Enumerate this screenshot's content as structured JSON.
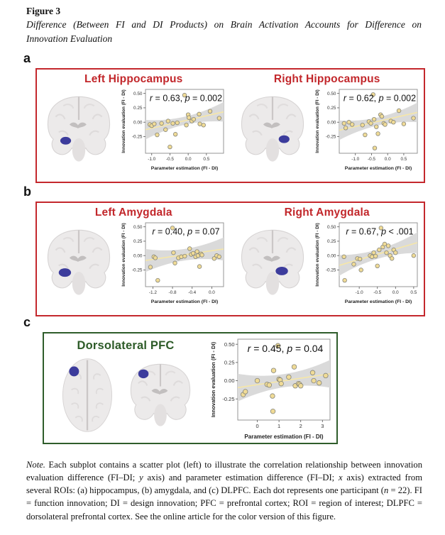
{
  "header": {
    "figure_label": "Figure 3",
    "caption_line1": "Difference (Between FI and DI Products) on Brain Activation Accounts for Difference on",
    "caption_line2": "Innovation Evaluation"
  },
  "colors": {
    "panel_red": "#C4282D",
    "panel_green": "#2F5D2B",
    "title_red": "#C2272B",
    "title_green": "#2D5B28",
    "dot_fill": "#F0DB96",
    "dot_stroke": "#85857B",
    "trend_line": "#F6E7A8",
    "band": "#DADADA",
    "roi_blue": "#3C3C9C"
  },
  "panels": [
    {
      "letter": "a",
      "subfigs": [
        {
          "title": "Left Hippocampus"
        },
        {
          "title": "Right Hippocampus"
        }
      ]
    },
    {
      "letter": "b",
      "subfigs": [
        {
          "title": "Left Amygdala"
        },
        {
          "title": "Right Amygdala"
        }
      ]
    },
    {
      "letter": "c",
      "subfigs": [
        {
          "title": "Dorsolateral PFC"
        }
      ]
    }
  ],
  "chart_data": [
    {
      "type": "scatter",
      "title": "Left Hippocampus",
      "xlabel": "Parameter estimation (FI - DI)",
      "ylabel": "Innovation evaluation (FI - DI)",
      "xlim": [
        -1.17,
        0.97
      ],
      "ylim": [
        -0.54,
        0.57
      ],
      "xticks": [
        [
          -1.0,
          "-1.0"
        ],
        [
          -0.5,
          "-0.5"
        ],
        [
          0.0,
          "0.0"
        ],
        [
          0.5,
          "0.5"
        ]
      ],
      "yticks": [
        [
          0.5,
          "0.50"
        ],
        [
          0.25,
          "0.25"
        ],
        [
          0.0,
          "0.00"
        ],
        [
          -0.25,
          "-0.25"
        ]
      ],
      "r": "0.63",
      "p_op": "=",
      "p_value": "0.002",
      "trend": {
        "x0": -1.17,
        "y0": -0.13,
        "x1": 0.97,
        "y1": 0.18,
        "band_mid": 0.07,
        "band_end": 0.17
      },
      "points": [
        [
          -1.05,
          -0.04
        ],
        [
          -1.0,
          -0.06
        ],
        [
          -0.93,
          -0.03
        ],
        [
          -0.85,
          -0.22
        ],
        [
          -0.73,
          -0.02
        ],
        [
          -0.62,
          -0.13
        ],
        [
          -0.55,
          0.02
        ],
        [
          -0.5,
          -0.43
        ],
        [
          -0.42,
          -0.02
        ],
        [
          -0.35,
          -0.21
        ],
        [
          -0.3,
          -0.01
        ],
        [
          -0.1,
          0.47
        ],
        [
          -0.05,
          -0.05
        ],
        [
          0.0,
          0.13
        ],
        [
          0.02,
          0.08
        ],
        [
          0.1,
          0.02
        ],
        [
          0.15,
          0.05
        ],
        [
          0.3,
          0.14
        ],
        [
          0.32,
          -0.03
        ],
        [
          0.42,
          -0.05
        ],
        [
          0.6,
          0.19
        ],
        [
          0.85,
          0.07
        ]
      ]
    },
    {
      "type": "scatter",
      "title": "Right Hippocampus",
      "xlabel": "Parameter estimation (FI - DI)",
      "ylabel": "Innovation evaluation (FI - DI)",
      "xlim": [
        -1.5,
        0.92
      ],
      "ylim": [
        -0.54,
        0.57
      ],
      "xticks": [
        [
          -1.0,
          "-1.0"
        ],
        [
          -0.5,
          "-0.5"
        ],
        [
          0.0,
          "0.0"
        ],
        [
          0.5,
          "0.5"
        ]
      ],
      "yticks": [
        [
          0.5,
          "0.50"
        ],
        [
          0.25,
          "0.25"
        ],
        [
          0.0,
          "0.00"
        ],
        [
          -0.25,
          "-0.25"
        ]
      ],
      "r": "0.62",
      "p_op": "=",
      "p_value": "0.002",
      "trend": {
        "x0": -1.5,
        "y0": -0.14,
        "x1": 0.92,
        "y1": 0.17,
        "band_mid": 0.07,
        "band_end": 0.17
      },
      "points": [
        [
          -1.35,
          -0.02
        ],
        [
          -1.3,
          -0.1
        ],
        [
          -1.2,
          0.0
        ],
        [
          -1.1,
          -0.04
        ],
        [
          -0.78,
          -0.05
        ],
        [
          -0.7,
          -0.22
        ],
        [
          -0.58,
          0.01
        ],
        [
          -0.52,
          -0.02
        ],
        [
          -0.45,
          0.48
        ],
        [
          -0.42,
          0.05
        ],
        [
          -0.4,
          -0.45
        ],
        [
          -0.35,
          -0.08
        ],
        [
          -0.3,
          -0.2
        ],
        [
          -0.22,
          0.13
        ],
        [
          -0.18,
          0.1
        ],
        [
          -0.12,
          -0.02
        ],
        [
          -0.08,
          -0.04
        ],
        [
          0.1,
          0.02
        ],
        [
          0.18,
          0.0
        ],
        [
          0.35,
          0.2
        ],
        [
          0.5,
          -0.03
        ],
        [
          0.8,
          0.07
        ]
      ]
    },
    {
      "type": "scatter",
      "title": "Left Amygdala",
      "xlabel": "Parameter estimation (FI - DI)",
      "ylabel": "Innovation evaluation (FI - DI)",
      "xlim": [
        -1.35,
        0.24
      ],
      "ylim": [
        -0.54,
        0.57
      ],
      "xticks": [
        [
          -1.2,
          "-1.2"
        ],
        [
          -0.8,
          "-0.8"
        ],
        [
          -0.4,
          "-0.4"
        ],
        [
          0.0,
          "0.0"
        ]
      ],
      "yticks": [
        [
          0.5,
          "0.50"
        ],
        [
          0.25,
          "0.25"
        ],
        [
          0.0,
          "0.00"
        ],
        [
          -0.25,
          "-0.25"
        ]
      ],
      "r": "0.40",
      "p_op": "=",
      "p_value": "0.07",
      "trend": {
        "x0": -1.35,
        "y0": -0.085,
        "x1": 0.24,
        "y1": 0.115,
        "band_mid": 0.1,
        "band_end": 0.2
      },
      "points": [
        [
          -1.25,
          -0.2
        ],
        [
          -1.18,
          -0.02
        ],
        [
          -1.15,
          -0.04
        ],
        [
          -1.1,
          -0.43
        ],
        [
          -0.8,
          0.48
        ],
        [
          -0.78,
          0.05
        ],
        [
          -0.75,
          -0.13
        ],
        [
          -0.68,
          -0.04
        ],
        [
          -0.62,
          -0.02
        ],
        [
          -0.55,
          -0.01
        ],
        [
          -0.45,
          0.12
        ],
        [
          -0.42,
          0.02
        ],
        [
          -0.38,
          0.04
        ],
        [
          -0.33,
          -0.02
        ],
        [
          -0.3,
          0.07
        ],
        [
          -0.28,
          0.0
        ],
        [
          -0.25,
          -0.19
        ],
        [
          -0.22,
          0.03
        ],
        [
          -0.2,
          0.01
        ],
        [
          0.05,
          -0.05
        ],
        [
          0.1,
          0.0
        ],
        [
          0.15,
          -0.02
        ]
      ]
    },
    {
      "type": "scatter",
      "title": "Right Amygdala",
      "xlabel": "Parameter estimation (FI - DI)",
      "ylabel": "Innovation evaluation (FI - DI)",
      "xlim": [
        -1.55,
        0.6
      ],
      "ylim": [
        -0.54,
        0.57
      ],
      "xticks": [
        [
          -1.0,
          "-1.0"
        ],
        [
          -0.5,
          "-0.5"
        ],
        [
          0.0,
          "0.0"
        ],
        [
          0.5,
          "0.5"
        ]
      ],
      "yticks": [
        [
          0.5,
          "0.50"
        ],
        [
          0.25,
          "0.25"
        ],
        [
          0.0,
          "0.00"
        ],
        [
          -0.25,
          "-0.25"
        ]
      ],
      "r": "0.67",
      "p_op": "<",
      "p_value": ".001",
      "trend": {
        "x0": -1.55,
        "y0": -0.17,
        "x1": 0.6,
        "y1": 0.225,
        "band_mid": 0.08,
        "band_end": 0.18
      },
      "points": [
        [
          -1.42,
          -0.02
        ],
        [
          -1.4,
          -0.43
        ],
        [
          -1.15,
          -0.15
        ],
        [
          -1.05,
          -0.05
        ],
        [
          -0.98,
          -0.06
        ],
        [
          -0.95,
          -0.25
        ],
        [
          -0.7,
          0.0
        ],
        [
          -0.65,
          -0.02
        ],
        [
          -0.6,
          0.05
        ],
        [
          -0.55,
          -0.01
        ],
        [
          -0.5,
          -0.18
        ],
        [
          -0.45,
          0.1
        ],
        [
          -0.4,
          0.48
        ],
        [
          -0.35,
          0.15
        ],
        [
          -0.3,
          0.2
        ],
        [
          -0.25,
          0.05
        ],
        [
          -0.2,
          0.17
        ],
        [
          -0.15,
          0.0
        ],
        [
          -0.1,
          -0.05
        ],
        [
          -0.05,
          0.1
        ],
        [
          0.0,
          0.05
        ],
        [
          0.5,
          0.0
        ]
      ]
    },
    {
      "type": "scatter",
      "title": "Dorsolateral PFC",
      "xlabel": "Parameter estimation (FI - DI)",
      "ylabel": "Innovation evaluation (FI - DI)",
      "xlim": [
        -0.9,
        3.35
      ],
      "ylim": [
        -0.54,
        0.57
      ],
      "xticks": [
        [
          0,
          "0"
        ],
        [
          1,
          "1"
        ],
        [
          2,
          "2"
        ],
        [
          3,
          "3"
        ]
      ],
      "yticks": [
        [
          0.5,
          "0.50"
        ],
        [
          0.25,
          "0.25"
        ],
        [
          0.0,
          "0.00"
        ],
        [
          -0.25,
          "-0.25"
        ]
      ],
      "r": "0.45",
      "p_op": "=",
      "p_value": "0.04",
      "trend": {
        "x0": -0.9,
        "y0": -0.095,
        "x1": 3.35,
        "y1": 0.095,
        "band_mid": 0.09,
        "band_end": 0.19
      },
      "points": [
        [
          -0.65,
          -0.19
        ],
        [
          -0.55,
          -0.15
        ],
        [
          0.0,
          0.0
        ],
        [
          0.45,
          -0.05
        ],
        [
          0.55,
          -0.06
        ],
        [
          0.7,
          -0.21
        ],
        [
          0.72,
          -0.42
        ],
        [
          0.75,
          0.14
        ],
        [
          0.95,
          0.48
        ],
        [
          1.0,
          0.02
        ],
        [
          1.05,
          0.01
        ],
        [
          1.1,
          -0.04
        ],
        [
          1.45,
          0.05
        ],
        [
          1.7,
          0.19
        ],
        [
          1.75,
          -0.07
        ],
        [
          1.9,
          -0.04
        ],
        [
          1.95,
          -0.05
        ],
        [
          2.0,
          -0.07
        ],
        [
          2.55,
          0.11
        ],
        [
          2.6,
          0.0
        ],
        [
          2.85,
          -0.03
        ],
        [
          3.15,
          0.07
        ]
      ]
    }
  ],
  "note": {
    "runs": [
      {
        "text": "Note.",
        "style": "italic"
      },
      {
        "text": "  Each subplot contains a scatter plot (left) to illustrate the correlation relationship between innovation evaluation difference (FI–DI; ",
        "style": "normal"
      },
      {
        "text": "y",
        "style": "italic"
      },
      {
        "text": " axis) and parameter estimation difference (FI–DI; ",
        "style": "normal"
      },
      {
        "text": "x",
        "style": "italic"
      },
      {
        "text": " axis) extracted from several ROIs: (a) hippocampus, (b) amygdala, and (c) DLPFC. Each dot represents one participant (",
        "style": "normal"
      },
      {
        "text": "n",
        "style": "italic"
      },
      {
        "text": " = 22). FI = function innovation; DI = design innovation; PFC = prefrontal cortex; ROI = region of interest; DLPFC = dorsolateral prefrontal cortex. See the online article for the color version of this figure.",
        "style": "normal"
      }
    ]
  }
}
